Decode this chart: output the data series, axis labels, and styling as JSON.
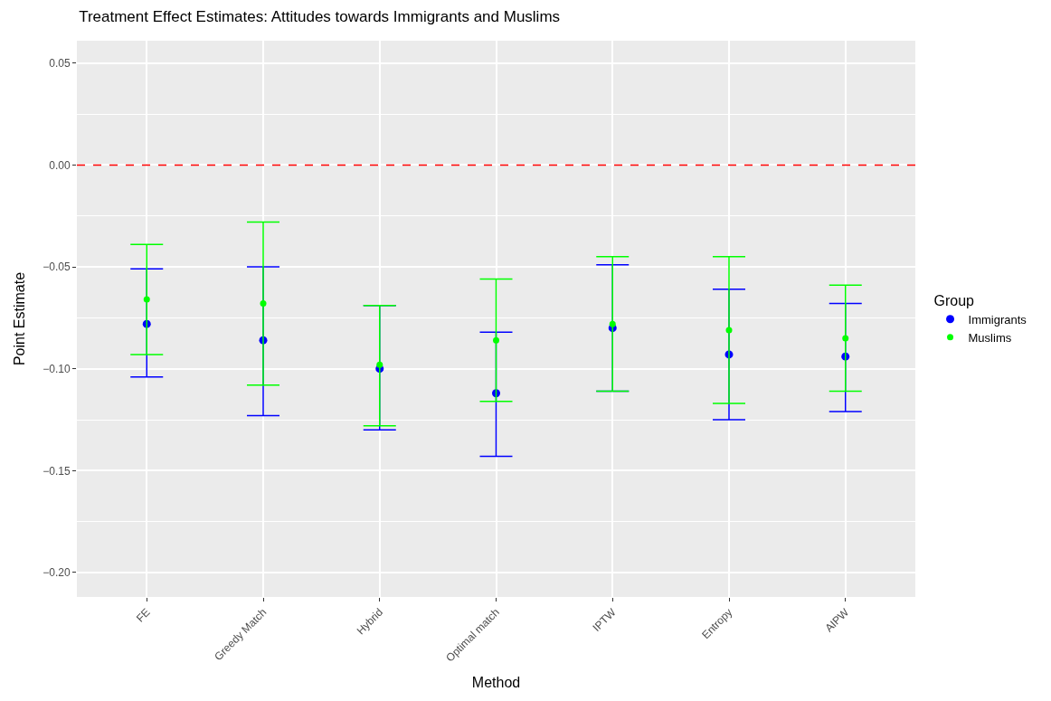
{
  "chart_data": {
    "type": "scatter",
    "title": "Treatment Effect Estimates: Attitudes towards Immigrants and Muslims",
    "xlabel": "Method",
    "ylabel": "Point Estimate",
    "legend_title": "Group",
    "categories": [
      "FE",
      "Greedy Match",
      "Hybrid",
      "Optimal match",
      "IPTW",
      "Entropy",
      "AIPW"
    ],
    "series": [
      {
        "name": "Immigrants",
        "color": "#0000ff",
        "values": [
          -0.078,
          -0.086,
          -0.1,
          -0.112,
          -0.08,
          -0.093,
          -0.094
        ],
        "errors": [
          [
            -0.104,
            -0.051
          ],
          [
            -0.123,
            -0.05
          ],
          [
            -0.13,
            -0.069
          ],
          [
            -0.143,
            -0.082
          ],
          [
            -0.111,
            -0.049
          ],
          [
            -0.125,
            -0.061
          ],
          [
            -0.121,
            -0.068
          ]
        ]
      },
      {
        "name": "Muslims",
        "color": "#00ff00",
        "values": [
          -0.066,
          -0.068,
          -0.098,
          -0.086,
          -0.078,
          -0.081,
          -0.085
        ],
        "errors": [
          [
            -0.093,
            -0.039
          ],
          [
            -0.108,
            -0.028
          ],
          [
            -0.128,
            -0.069
          ],
          [
            -0.116,
            -0.056
          ],
          [
            -0.111,
            -0.045
          ],
          [
            -0.117,
            -0.045
          ],
          [
            -0.111,
            -0.059
          ]
        ]
      }
    ],
    "ylim": [
      -0.212,
      0.061
    ],
    "yticks": [
      {
        "value": -0.2,
        "label": "−0.20"
      },
      {
        "value": -0.15,
        "label": "−0.15"
      },
      {
        "value": -0.1,
        "label": "−0.10"
      },
      {
        "value": -0.05,
        "label": "−0.05"
      },
      {
        "value": 0,
        "label": "0.00"
      },
      {
        "value": 0.05,
        "label": "0.05"
      }
    ],
    "ref_lines": [
      {
        "axis": "y",
        "value": 0,
        "color": "#ff0000",
        "line_style": "dashed"
      }
    ],
    "grid": true,
    "legend": "right",
    "marker": "circle"
  }
}
